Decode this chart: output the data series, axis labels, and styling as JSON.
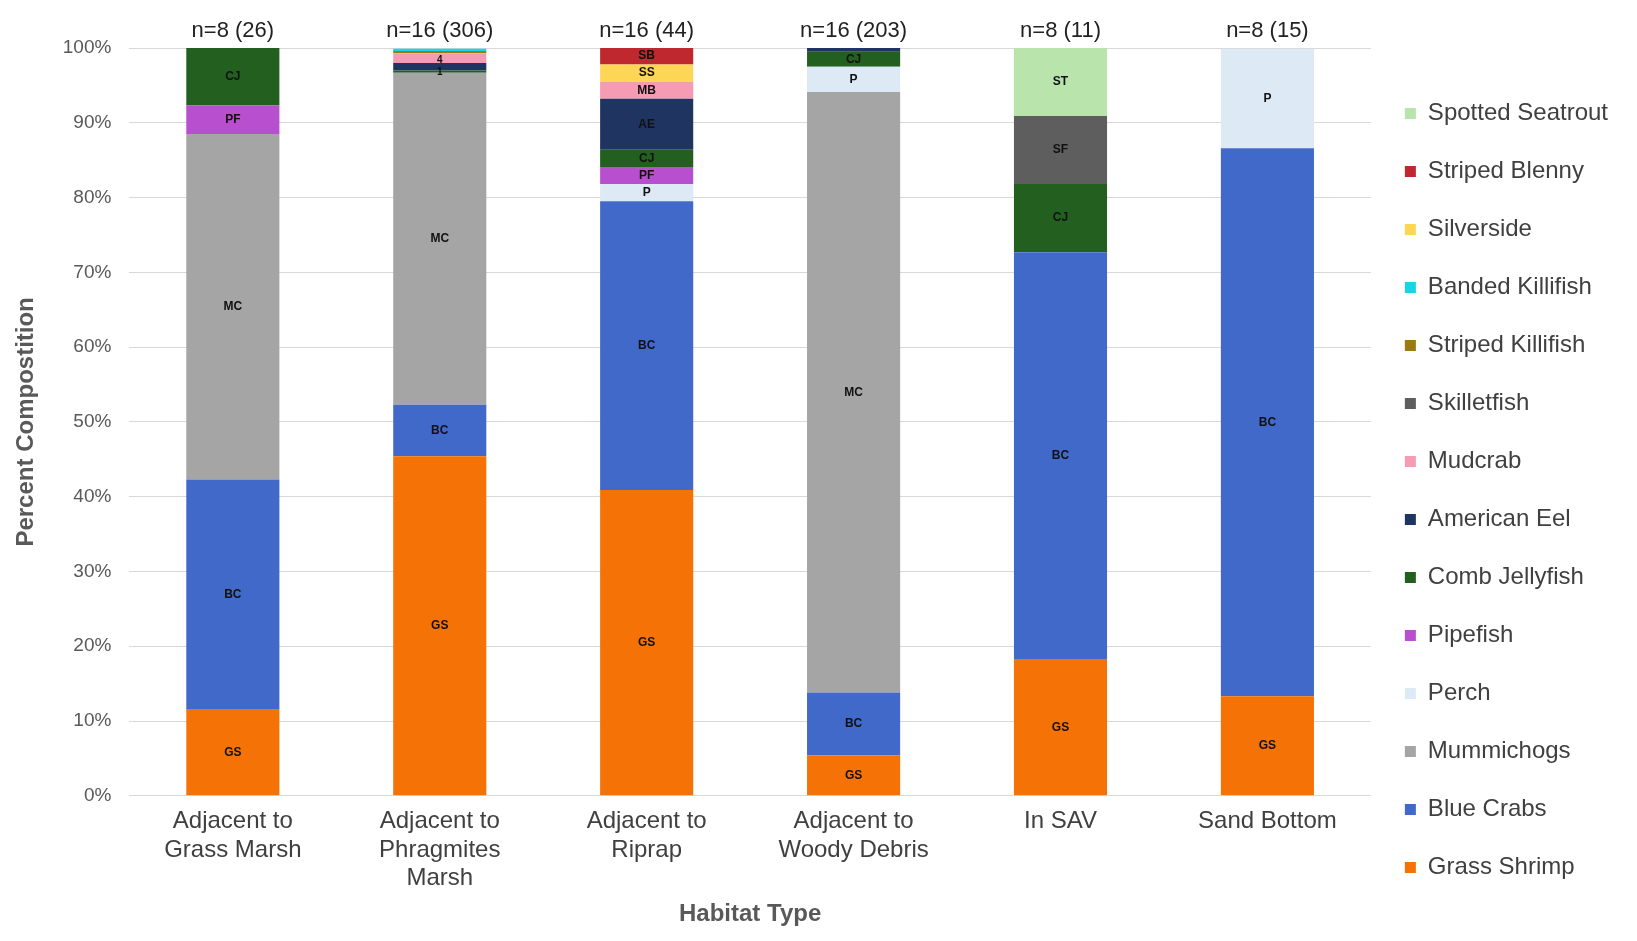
{
  "chart_data": {
    "type": "bar",
    "stacked": true,
    "xlabel": "Habitat Type",
    "ylabel": "Percent Compostition",
    "categories": [
      "Adjacent to Grass Marsh",
      "Adjacent to Phragmites Marsh",
      "Adjacent to Riprap",
      "Adjacent to Woody Debris",
      "In SAV",
      "Sand Bottom"
    ],
    "ylim": [
      0,
      100
    ],
    "yticks": [
      {
        "value": 0,
        "label": "0%"
      },
      {
        "value": 10,
        "label": "10%"
      },
      {
        "value": 20,
        "label": "20%"
      },
      {
        "value": 30,
        "label": "30%"
      },
      {
        "value": 40,
        "label": "40%"
      },
      {
        "value": 50,
        "label": "50%"
      },
      {
        "value": 60,
        "label": "60%"
      },
      {
        "value": 70,
        "label": "70%"
      },
      {
        "value": 80,
        "label": "80%"
      },
      {
        "value": 90,
        "label": "90%"
      },
      {
        "value": 100,
        "label": "100%"
      }
    ],
    "grid": "y",
    "legend": "right",
    "annotations": [
      {
        "text": "n=8 (26)",
        "x": "Adjacent to Grass Marsh",
        "y": 100
      },
      {
        "text": "n=16 (306)",
        "x": "Adjacent to Phragmites Marsh",
        "y": 100
      },
      {
        "text": "n=16 (44)",
        "x": "Adjacent to Riprap",
        "y": 100
      },
      {
        "text": "n=16 (203)",
        "x": "Adjacent to Woody Debris",
        "y": 100
      },
      {
        "text": "n=8 (11)",
        "x": "In SAV",
        "y": 100
      },
      {
        "text": "n=8 (15)",
        "x": "Sand Bottom",
        "y": 100
      },
      {
        "text": "4",
        "x": "Adjacent to Phragmites Marsh",
        "y": 98.4
      },
      {
        "text": "1",
        "x": "Adjacent to Phragmites Marsh",
        "y": 96.8
      }
    ],
    "series": [
      {
        "name": "Grass Shrimp",
        "color": "#f57206",
        "values": [
          11.5,
          45.4,
          40.9,
          5.4,
          18.2,
          13.3
        ],
        "value_labels": [
          "GS",
          "GS",
          "GS",
          "GS",
          "GS",
          "GS"
        ]
      },
      {
        "name": "Blue Crabs",
        "color": "#4169c9",
        "values": [
          30.8,
          6.9,
          38.6,
          8.4,
          54.5,
          73.3
        ],
        "value_labels": [
          "BC",
          "BC",
          "BC",
          "BC",
          "BC",
          "BC"
        ]
      },
      {
        "name": "Mummichogs",
        "color": "#a5a5a5",
        "values": [
          46.2,
          44.4,
          null,
          80.3,
          null,
          null
        ],
        "value_labels": [
          "MC",
          "MC",
          null,
          "MC",
          null,
          null
        ]
      },
      {
        "name": "Perch",
        "color": "#dde9f5",
        "values": [
          null,
          null,
          2.3,
          3.4,
          null,
          13.3
        ],
        "value_labels": [
          null,
          null,
          "P",
          "P",
          null,
          "P"
        ]
      },
      {
        "name": "Pipefish",
        "color": "#b74fcf",
        "values": [
          3.8,
          null,
          2.3,
          null,
          null,
          null
        ],
        "value_labels": [
          "PF",
          null,
          "PF",
          null,
          null,
          null
        ]
      },
      {
        "name": "Comb Jellyfish",
        "color": "#236020",
        "values": [
          7.7,
          0.3,
          2.3,
          2.0,
          9.1,
          null
        ],
        "value_labels": [
          "CJ",
          null,
          "CJ",
          "CJ",
          "CJ",
          null
        ]
      },
      {
        "name": "American Eel",
        "color": "#1f3461",
        "values": [
          null,
          1.0,
          6.8,
          0.5,
          null,
          null
        ],
        "value_labels": [
          null,
          null,
          "AE",
          null,
          null,
          null
        ]
      },
      {
        "name": "Mudcrab",
        "color": "#f59bb3",
        "values": [
          null,
          1.3,
          2.3,
          null,
          null,
          null
        ],
        "value_labels": [
          null,
          null,
          "MB",
          null,
          null,
          null
        ]
      },
      {
        "name": "Skilletfish",
        "color": "#5e5e5e",
        "values": [
          null,
          null,
          null,
          null,
          9.1,
          null
        ],
        "value_labels": [
          null,
          null,
          null,
          null,
          "SF",
          null
        ]
      },
      {
        "name": "Striped Killifish",
        "color": "#9c7a12",
        "values": [
          null,
          0.3,
          null,
          null,
          null,
          null
        ]
      },
      {
        "name": "Banded Killifish",
        "color": "#1ad3e3",
        "values": [
          null,
          0.3,
          null,
          null,
          null,
          null
        ],
        "value_labels": [
          null,
          null,
          null,
          null,
          null,
          null
        ]
      },
      {
        "name": "Silverside",
        "color": "#fdd655",
        "values": [
          null,
          null,
          2.3,
          null,
          null,
          null
        ],
        "value_labels": [
          null,
          null,
          "SS",
          null,
          null,
          null
        ]
      },
      {
        "name": "Striped Blenny",
        "color": "#c0282f",
        "values": [
          null,
          null,
          2.3,
          null,
          null,
          null
        ],
        "value_labels": [
          null,
          null,
          "SB",
          null,
          null,
          null
        ]
      },
      {
        "name": "Spotted Seatrout",
        "color": "#b9e4ac",
        "values": [
          null,
          null,
          null,
          null,
          9.1,
          null
        ],
        "value_labels": [
          null,
          null,
          null,
          null,
          "ST",
          null
        ]
      }
    ]
  }
}
